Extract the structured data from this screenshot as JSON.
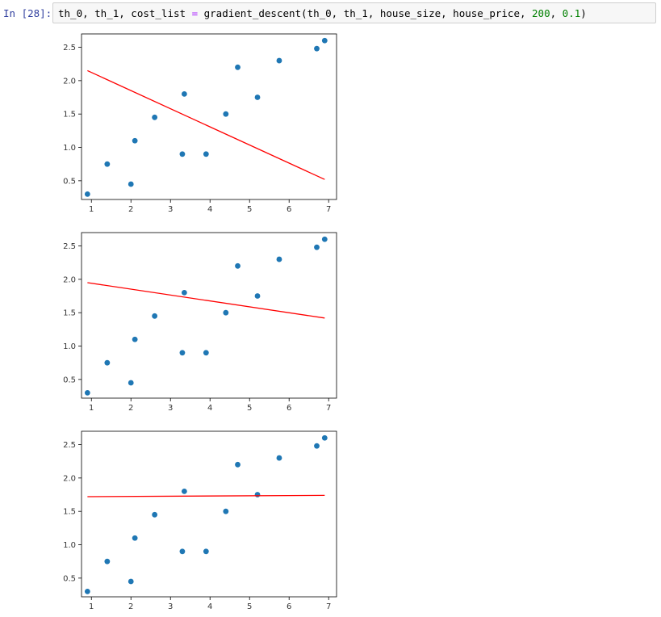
{
  "cell": {
    "prompt": "In [28]:",
    "code_parts": {
      "p1": "th_0, th_1, cost_list ",
      "eq": "=",
      "p2": " gradient_descent(th_0, th_1, house_size, house_price, ",
      "num1": "200",
      "p3": ", ",
      "num2": "0.1",
      "p4": ")"
    }
  },
  "colors": {
    "point": "#1f77b4",
    "line": "#ff0000",
    "axis": "#000000"
  },
  "chart_data": [
    {
      "type": "scatter",
      "xlim": [
        0.75,
        7.2
      ],
      "ylim": [
        0.22,
        2.7
      ],
      "xticks": [
        1,
        2,
        3,
        4,
        5,
        6,
        7
      ],
      "yticks": [
        0.5,
        1.0,
        1.5,
        2.0,
        2.5
      ],
      "ytick_labels": [
        "0.5",
        "1.0",
        "1.5",
        "2.0",
        "2.5"
      ],
      "x": [
        0.9,
        1.4,
        2.0,
        2.1,
        2.6,
        3.3,
        3.35,
        3.9,
        4.4,
        4.7,
        5.2,
        5.75,
        6.7,
        6.9
      ],
      "y": [
        0.3,
        0.75,
        0.45,
        1.1,
        1.45,
        0.9,
        1.8,
        0.9,
        1.5,
        2.2,
        1.75,
        2.3,
        2.48,
        2.6
      ],
      "line": {
        "x": [
          0.9,
          6.9
        ],
        "y": [
          2.15,
          0.52
        ]
      },
      "grid": false
    },
    {
      "type": "scatter",
      "xlim": [
        0.75,
        7.2
      ],
      "ylim": [
        0.22,
        2.7
      ],
      "xticks": [
        1,
        2,
        3,
        4,
        5,
        6,
        7
      ],
      "yticks": [
        0.5,
        1.0,
        1.5,
        2.0,
        2.5
      ],
      "ytick_labels": [
        "0.5",
        "1.0",
        "1.5",
        "2.0",
        "2.5"
      ],
      "x": [
        0.9,
        1.4,
        2.0,
        2.1,
        2.6,
        3.3,
        3.35,
        3.9,
        4.4,
        4.7,
        5.2,
        5.75,
        6.7,
        6.9
      ],
      "y": [
        0.3,
        0.75,
        0.45,
        1.1,
        1.45,
        0.9,
        1.8,
        0.9,
        1.5,
        2.2,
        1.75,
        2.3,
        2.48,
        2.6
      ],
      "line": {
        "x": [
          0.9,
          6.9
        ],
        "y": [
          1.95,
          1.42
        ]
      },
      "grid": false
    },
    {
      "type": "scatter",
      "xlim": [
        0.75,
        7.2
      ],
      "ylim": [
        0.22,
        2.7
      ],
      "xticks": [
        1,
        2,
        3,
        4,
        5,
        6,
        7
      ],
      "yticks": [
        0.5,
        1.0,
        1.5,
        2.0,
        2.5
      ],
      "ytick_labels": [
        "0.5",
        "1.0",
        "1.5",
        "2.0",
        "2.5"
      ],
      "x": [
        0.9,
        1.4,
        2.0,
        2.1,
        2.6,
        3.3,
        3.35,
        3.9,
        4.4,
        4.7,
        5.2,
        5.75,
        6.7,
        6.9
      ],
      "y": [
        0.3,
        0.75,
        0.45,
        1.1,
        1.45,
        0.9,
        1.8,
        0.9,
        1.5,
        2.2,
        1.75,
        2.3,
        2.48,
        2.6
      ],
      "line": {
        "x": [
          0.9,
          6.9
        ],
        "y": [
          1.72,
          1.74
        ]
      },
      "grid": false
    }
  ]
}
